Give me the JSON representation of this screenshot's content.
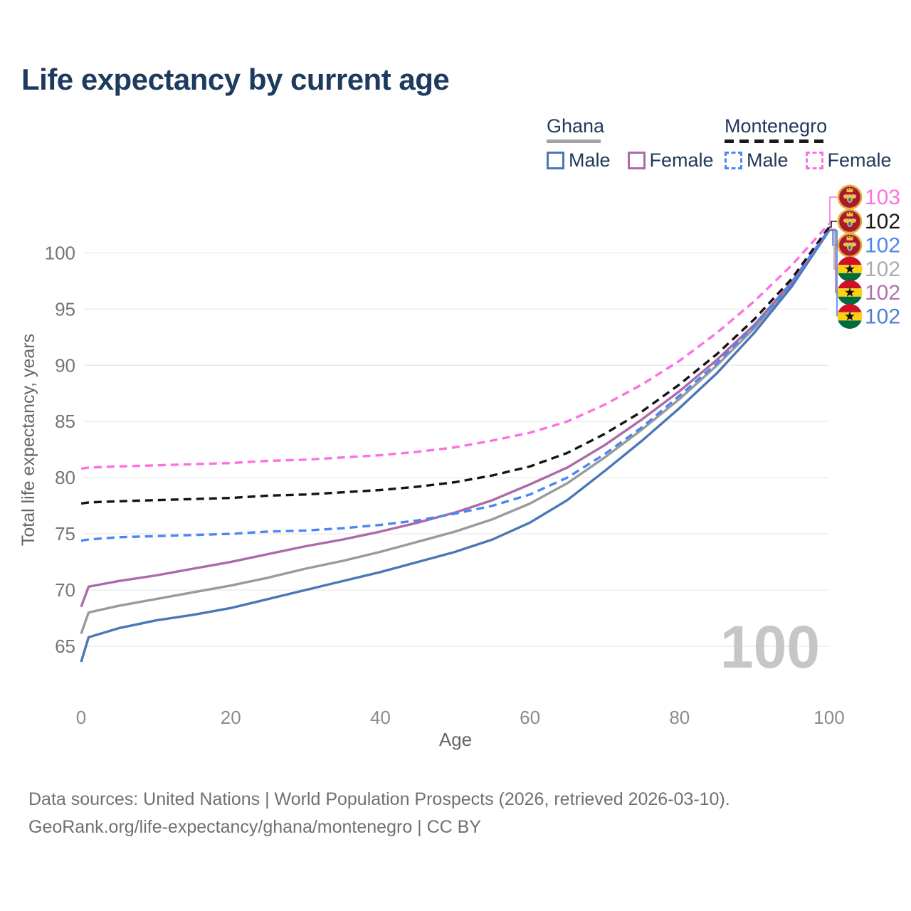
{
  "title": "Life expectancy by current age",
  "legend": {
    "groups": [
      {
        "id": "ghana",
        "label": "Ghana",
        "line_style": "solid",
        "line_color": "#a3a3a3",
        "items": [
          {
            "id": "ghana-male",
            "label": "Male",
            "swatch_color": "#4a77b5",
            "swatch_style": "solid"
          },
          {
            "id": "ghana-female",
            "label": "Female",
            "swatch_color": "#ad69a9",
            "swatch_style": "solid"
          }
        ]
      },
      {
        "id": "montenegro",
        "label": "Montenegro",
        "line_style": "dashed",
        "line_color": "#1a1a1a",
        "items": [
          {
            "id": "montenegro-male",
            "label": "Male",
            "swatch_color": "#4b86f2",
            "swatch_style": "dashed"
          },
          {
            "id": "montenegro-female",
            "label": "Female",
            "swatch_color": "#fb71e1",
            "swatch_style": "dashed"
          }
        ]
      }
    ]
  },
  "footer": {
    "line1": "Data sources: United Nations | World Population Prospects (2026, retrieved 2026-03-10).",
    "line2": "GeoRank.org/life-expectancy/ghana/montenegro | CC BY"
  },
  "colors": {
    "title_text": "#1d3a5f",
    "legend_text": "#21395c",
    "tick_text": "#757575",
    "x_tick_text": "#8c8c8c",
    "axis_title_text": "#666666",
    "gridline": "#ebebeb",
    "watermark": "#c6c6c6",
    "footer_text": "#707070"
  },
  "chart_data": {
    "type": "line",
    "title": "Life expectancy by current age",
    "xlabel": "Age",
    "ylabel": "Total life expectancy, years",
    "grid": "horizontal",
    "legend_position": "top-right",
    "watermark": "100",
    "xlim": [
      0,
      100
    ],
    "ylim": [
      62,
      104
    ],
    "xticks": [
      0,
      20,
      40,
      60,
      80,
      100
    ],
    "yticks": [
      65,
      70,
      75,
      80,
      85,
      90,
      95,
      100
    ],
    "x": [
      0,
      1,
      5,
      10,
      15,
      20,
      25,
      30,
      35,
      40,
      45,
      50,
      55,
      60,
      65,
      70,
      75,
      80,
      85,
      90,
      95,
      100
    ],
    "series": [
      {
        "id": "ghana-total",
        "name": "Ghana Both sexes",
        "country": "Ghana",
        "style": "solid",
        "color": "#9a9a9a",
        "values": [
          66.1,
          68.0,
          68.6,
          69.2,
          69.8,
          70.4,
          71.1,
          71.9,
          72.6,
          73.4,
          74.3,
          75.2,
          76.3,
          77.7,
          79.5,
          81.8,
          84.3,
          87.0,
          90.0,
          93.3,
          97.2,
          102.0
        ]
      },
      {
        "id": "ghana-male",
        "name": "Ghana Male",
        "country": "Ghana",
        "style": "solid",
        "color": "#4a77b5",
        "values": [
          63.6,
          65.8,
          66.6,
          67.3,
          67.8,
          68.4,
          69.2,
          70.0,
          70.8,
          71.6,
          72.5,
          73.4,
          74.5,
          76.0,
          78.0,
          80.6,
          83.3,
          86.2,
          89.3,
          92.9,
          97.0,
          102.0
        ]
      },
      {
        "id": "ghana-female",
        "name": "Ghana Female",
        "country": "Ghana",
        "style": "solid",
        "color": "#ad69a9",
        "values": [
          68.5,
          70.3,
          70.8,
          71.3,
          71.9,
          72.5,
          73.2,
          73.9,
          74.5,
          75.2,
          76.0,
          76.9,
          78.0,
          79.4,
          80.9,
          82.9,
          85.2,
          87.7,
          90.5,
          93.6,
          97.4,
          102.1
        ]
      },
      {
        "id": "montenegro-total",
        "name": "Montenegro Both sexes",
        "country": "Montenegro",
        "style": "dashed",
        "color": "#141414",
        "values": [
          77.7,
          77.8,
          77.9,
          78.0,
          78.1,
          78.2,
          78.4,
          78.5,
          78.7,
          78.9,
          79.2,
          79.6,
          80.2,
          81.0,
          82.2,
          83.9,
          85.9,
          88.3,
          91.0,
          94.1,
          97.7,
          102.3
        ]
      },
      {
        "id": "montenegro-female",
        "name": "Montenegro Female",
        "country": "Montenegro",
        "style": "dashed",
        "color": "#fb71e1",
        "values": [
          80.8,
          80.9,
          81.0,
          81.1,
          81.2,
          81.3,
          81.5,
          81.6,
          81.8,
          82.0,
          82.3,
          82.7,
          83.3,
          84.0,
          85.0,
          86.5,
          88.3,
          90.4,
          92.9,
          95.7,
          98.9,
          102.6
        ]
      },
      {
        "id": "montenegro-male",
        "name": "Montenegro Male",
        "country": "Montenegro",
        "style": "dashed",
        "color": "#4b86f2",
        "values": [
          74.4,
          74.5,
          74.7,
          74.8,
          74.9,
          75.0,
          75.2,
          75.3,
          75.5,
          75.8,
          76.2,
          76.8,
          77.5,
          78.5,
          80.0,
          82.1,
          84.5,
          87.3,
          90.2,
          93.5,
          97.3,
          102.1
        ]
      }
    ],
    "end_labels": [
      {
        "series": "montenegro-female",
        "value": "103",
        "flag": "montenegro",
        "color": "#fb71e1"
      },
      {
        "series": "montenegro-total",
        "value": "102",
        "flag": "montenegro",
        "color": "#1a1a1a"
      },
      {
        "series": "montenegro-male",
        "value": "102",
        "flag": "montenegro",
        "color": "#4d86ee"
      },
      {
        "series": "ghana-total",
        "value": "102",
        "flag": "ghana",
        "color": "#acacac"
      },
      {
        "series": "ghana-female",
        "value": "102",
        "flag": "ghana",
        "color": "#b173ae"
      },
      {
        "series": "ghana-male",
        "value": "102",
        "flag": "ghana",
        "color": "#4d7fd2"
      }
    ],
    "flags": {
      "ghana": {
        "red": "#ce1126",
        "gold": "#fcd116",
        "green": "#006b3f",
        "star": "#111111"
      },
      "montenegro": {
        "ring": "#e3b13c",
        "field": "#a91a30",
        "emblem": "#e8c24a",
        "shield": "#3f6fb5"
      }
    }
  }
}
